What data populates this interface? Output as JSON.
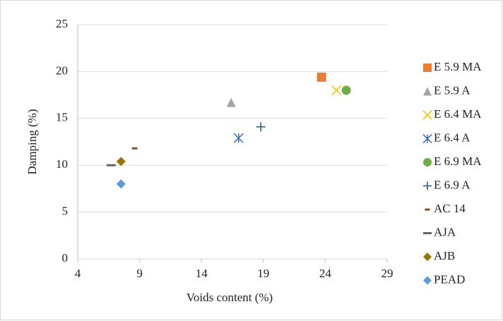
{
  "chart_data": {
    "type": "scatter",
    "x_label": "Voids content (%)",
    "y_label": "Damping (%)",
    "xlim": [
      4,
      29
    ],
    "xticks": [
      4,
      9,
      14,
      19,
      24,
      29
    ],
    "ylim": [
      0,
      25
    ],
    "yticks": [
      0,
      5,
      10,
      15,
      20,
      25
    ],
    "grid": true,
    "legend": "right",
    "series": [
      {
        "name": "E 5.9 MA",
        "color": "#ed7d31",
        "marker": "square",
        "x": [
          23.7
        ],
        "values": [
          19.4
        ]
      },
      {
        "name": "E 5.9 A",
        "color": "#a5a5a5",
        "marker": "triangle",
        "x": [
          16.4
        ],
        "values": [
          16.7
        ]
      },
      {
        "name": "E 6.4 MA",
        "color": "#ffc000",
        "marker": "x",
        "x": [
          24.9
        ],
        "values": [
          18
        ]
      },
      {
        "name": "E 6.4 A",
        "color": "#4472c4",
        "marker": "star",
        "x": [
          17
        ],
        "values": [
          12.9
        ]
      },
      {
        "name": "E 6.9 MA",
        "color": "#70ad47",
        "marker": "circle",
        "x": [
          25.7
        ],
        "values": [
          18
        ]
      },
      {
        "name": "E 6.9 A",
        "color": "#255e91",
        "marker": "plus",
        "x": [
          18.8
        ],
        "values": [
          14.1
        ]
      },
      {
        "name": "AC 14",
        "color": "#9e480e",
        "marker": "dash",
        "x": [
          8.6
        ],
        "values": [
          11.8
        ]
      },
      {
        "name": "AJA",
        "color": "#636363",
        "marker": "longdash",
        "x": [
          6.7
        ],
        "values": [
          10
        ]
      },
      {
        "name": "AJB",
        "color": "#997300",
        "marker": "diamond",
        "x": [
          7.5
        ],
        "values": [
          10.4
        ]
      },
      {
        "name": "PEAD",
        "color": "#5b9bd5",
        "marker": "diamond",
        "x": [
          7.5
        ],
        "values": [
          8
        ]
      }
    ]
  }
}
